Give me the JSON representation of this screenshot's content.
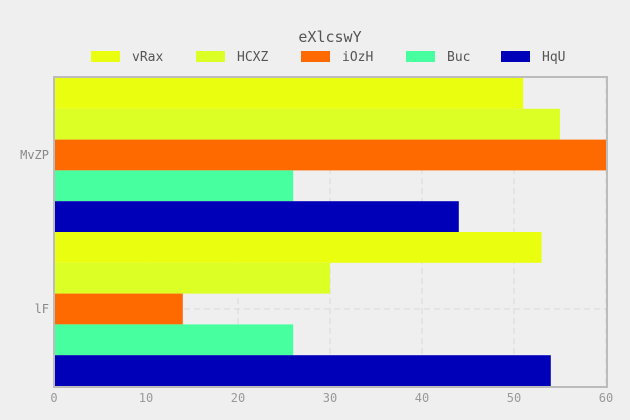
{
  "chart_data": {
    "type": "bar",
    "orientation": "horizontal",
    "title": "eXlcswY",
    "categories": [
      "MvZP",
      "lF"
    ],
    "series": [
      {
        "name": "vRax",
        "color": "#eaff0f",
        "values": [
          51,
          53
        ]
      },
      {
        "name": "HCXZ",
        "color": "#dcff26",
        "values": [
          55,
          30
        ]
      },
      {
        "name": "iOzH",
        "color": "#ff6a00",
        "values": [
          60,
          14
        ]
      },
      {
        "name": "Buc",
        "color": "#48ffa0",
        "values": [
          26,
          26
        ]
      },
      {
        "name": "HqU",
        "color": "#0000b8",
        "values": [
          44,
          54
        ]
      }
    ],
    "xlim": [
      0,
      60
    ],
    "xticks": [
      0,
      10,
      20,
      30,
      40,
      50,
      60
    ],
    "xlabel": "",
    "ylabel": "",
    "grid": true,
    "legend": "top"
  }
}
